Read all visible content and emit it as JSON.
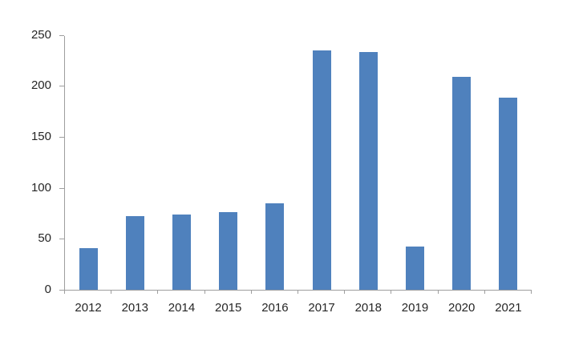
{
  "chart_data": {
    "type": "bar",
    "categories": [
      "2012",
      "2013",
      "2014",
      "2015",
      "2016",
      "2017",
      "2018",
      "2019",
      "2020",
      "2021"
    ],
    "values": [
      42,
      73,
      75,
      77,
      86,
      236,
      234,
      43,
      210,
      189
    ],
    "title": "",
    "xlabel": "",
    "ylabel": "",
    "ylim": [
      0,
      250
    ],
    "yticks": [
      0,
      50,
      100,
      150,
      200,
      250
    ],
    "grid": false,
    "legend": false,
    "colors": {
      "bar_fill": "#4f81bd",
      "axis_line": "#9e9e9e",
      "tick_label": "#262626",
      "background": "#ffffff"
    }
  }
}
